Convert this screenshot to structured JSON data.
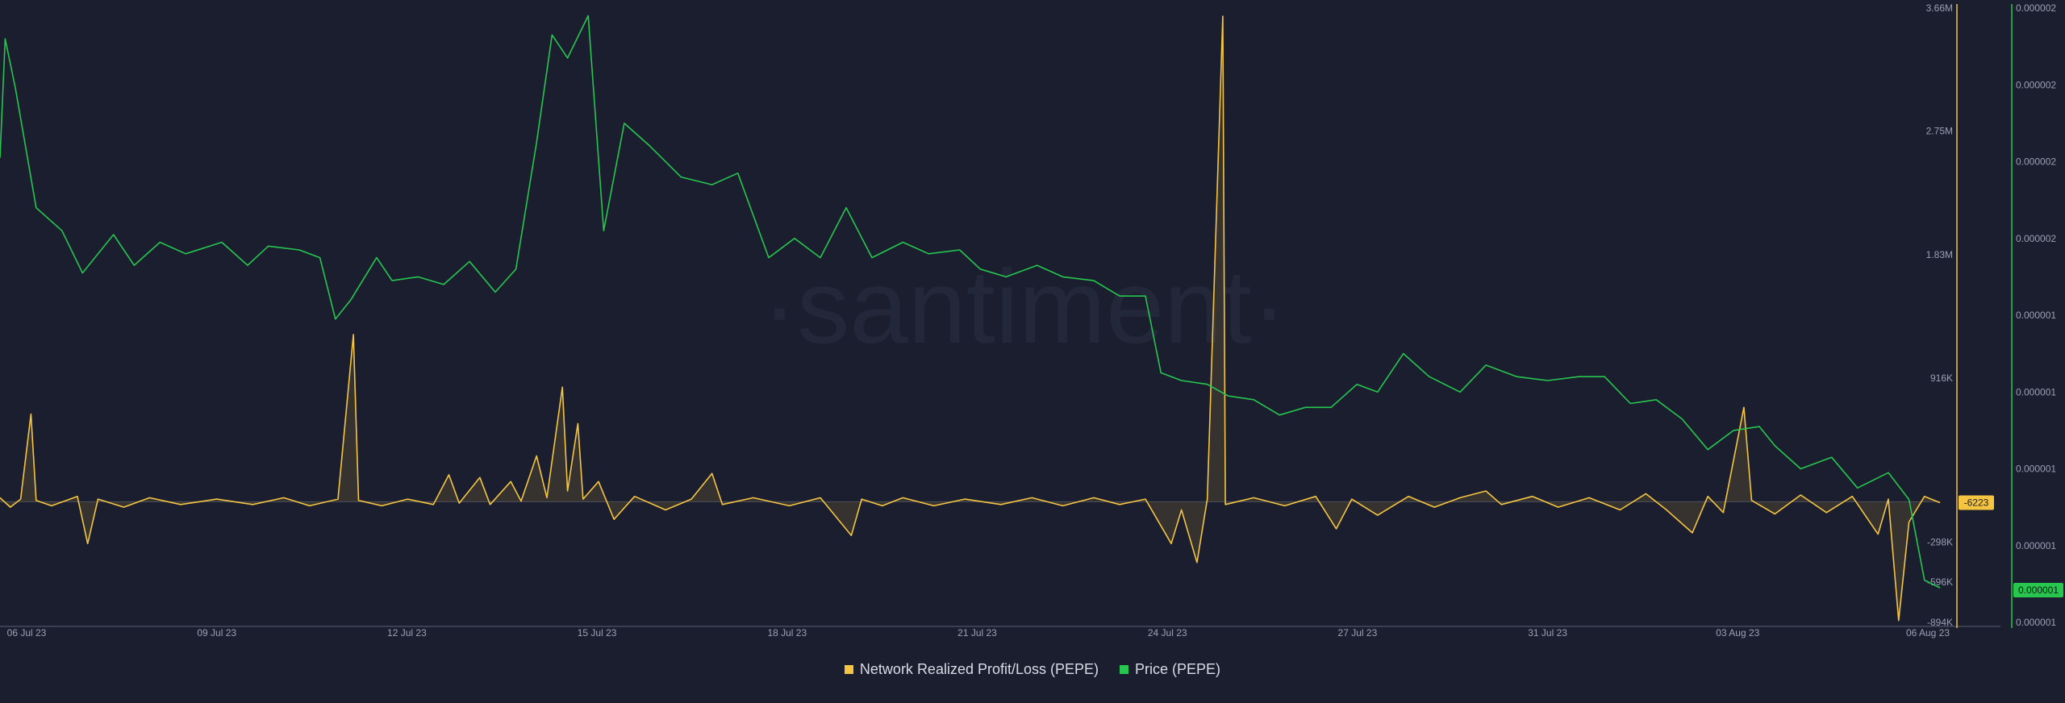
{
  "watermark": "·santiment·",
  "legend": {
    "items": [
      {
        "label": "Network Realized Profit/Loss (PEPE)",
        "color": "#f5c542"
      },
      {
        "label": "Price (PEPE)",
        "color": "#26c64f"
      }
    ]
  },
  "chart_data": {
    "type": "line",
    "x_labels": [
      "06 Jul 23",
      "09 Jul 23",
      "12 Jul 23",
      "15 Jul 23",
      "18 Jul 23",
      "21 Jul 23",
      "24 Jul 23",
      "27 Jul 23",
      "31 Jul 23",
      "03 Aug 23",
      "06 Aug 23"
    ],
    "x_domain": [
      "2023-07-05T16:00",
      "2023-08-06T00:00"
    ],
    "grid": false,
    "legend_position": "bottom-center",
    "profit_loss_axis": {
      "ticks": [
        "3.66M",
        "2.75M",
        "1.83M",
        "916K",
        "-298K",
        "-596K",
        "-894K"
      ],
      "tick_values": [
        3660000,
        2750000,
        1830000,
        916000,
        -298000,
        -596000,
        -894000
      ],
      "range": [
        -894000,
        3660000
      ],
      "current_label": "-6223"
    },
    "price_axis": {
      "ticks": [
        "0.000002",
        "0.000002",
        "0.000002",
        "0.000002",
        "0.000001",
        "0.000001",
        "0.000001",
        "0.000001",
        "0.000001"
      ],
      "range": [
        1.2e-06,
        2.8e-06
      ],
      "current_label": "0.000001"
    },
    "series": [
      {
        "name": "Network Realized Profit/Loss (PEPE)",
        "color": "#f5c542",
        "axis": "left",
        "points": [
          [
            "2023-07-05T16:00",
            30000
          ],
          [
            "2023-07-05T20:00",
            -40000
          ],
          [
            "2023-07-06T00:00",
            20000
          ],
          [
            "2023-07-06T04:00",
            650000
          ],
          [
            "2023-07-06T06:00",
            10000
          ],
          [
            "2023-07-06T12:00",
            -30000
          ],
          [
            "2023-07-06T22:00",
            40000
          ],
          [
            "2023-07-07T02:00",
            -310000
          ],
          [
            "2023-07-07T06:00",
            20000
          ],
          [
            "2023-07-07T16:00",
            -40000
          ],
          [
            "2023-07-08T02:00",
            30000
          ],
          [
            "2023-07-08T14:00",
            -20000
          ],
          [
            "2023-07-09T04:00",
            20000
          ],
          [
            "2023-07-09T18:00",
            -20000
          ],
          [
            "2023-07-10T06:00",
            30000
          ],
          [
            "2023-07-10T16:00",
            -30000
          ],
          [
            "2023-07-11T03:00",
            20000
          ],
          [
            "2023-07-11T09:00",
            1240000
          ],
          [
            "2023-07-11T11:00",
            10000
          ],
          [
            "2023-07-11T20:00",
            -30000
          ],
          [
            "2023-07-12T06:00",
            20000
          ],
          [
            "2023-07-12T16:00",
            -20000
          ],
          [
            "2023-07-12T22:00",
            200000
          ],
          [
            "2023-07-13T02:00",
            -10000
          ],
          [
            "2023-07-13T10:00",
            180000
          ],
          [
            "2023-07-13T14:00",
            -20000
          ],
          [
            "2023-07-13T22:00",
            150000
          ],
          [
            "2023-07-14T02:00",
            5000
          ],
          [
            "2023-07-14T08:00",
            340000
          ],
          [
            "2023-07-14T12:00",
            30000
          ],
          [
            "2023-07-14T18:00",
            850000
          ],
          [
            "2023-07-14T20:00",
            80000
          ],
          [
            "2023-07-15T00:00",
            580000
          ],
          [
            "2023-07-15T02:00",
            20000
          ],
          [
            "2023-07-15T08:00",
            150000
          ],
          [
            "2023-07-15T14:00",
            -130000
          ],
          [
            "2023-07-15T22:00",
            40000
          ],
          [
            "2023-07-16T10:00",
            -60000
          ],
          [
            "2023-07-16T20:00",
            20000
          ],
          [
            "2023-07-17T04:00",
            210000
          ],
          [
            "2023-07-17T08:00",
            -20000
          ],
          [
            "2023-07-17T20:00",
            30000
          ],
          [
            "2023-07-18T10:00",
            -30000
          ],
          [
            "2023-07-18T22:00",
            30000
          ],
          [
            "2023-07-19T10:00",
            -250000
          ],
          [
            "2023-07-19T14:00",
            20000
          ],
          [
            "2023-07-19T22:00",
            -30000
          ],
          [
            "2023-07-20T06:00",
            30000
          ],
          [
            "2023-07-20T18:00",
            -30000
          ],
          [
            "2023-07-21T06:00",
            20000
          ],
          [
            "2023-07-21T20:00",
            -20000
          ],
          [
            "2023-07-22T08:00",
            30000
          ],
          [
            "2023-07-22T20:00",
            -30000
          ],
          [
            "2023-07-23T08:00",
            30000
          ],
          [
            "2023-07-23T18:00",
            -20000
          ],
          [
            "2023-07-24T04:00",
            20000
          ],
          [
            "2023-07-24T14:00",
            -310000
          ],
          [
            "2023-07-24T18:00",
            -60000
          ],
          [
            "2023-07-25T00:00",
            -450000
          ],
          [
            "2023-07-25T04:00",
            20000
          ],
          [
            "2023-07-25T10:00",
            3600000
          ],
          [
            "2023-07-25T11:00",
            -20000
          ],
          [
            "2023-07-25T22:00",
            30000
          ],
          [
            "2023-07-26T10:00",
            -30000
          ],
          [
            "2023-07-26T22:00",
            40000
          ],
          [
            "2023-07-27T06:00",
            -200000
          ],
          [
            "2023-07-27T12:00",
            20000
          ],
          [
            "2023-07-27T22:00",
            -100000
          ],
          [
            "2023-07-28T10:00",
            40000
          ],
          [
            "2023-07-28T20:00",
            -40000
          ],
          [
            "2023-07-29T06:00",
            30000
          ],
          [
            "2023-07-29T16:00",
            80000
          ],
          [
            "2023-07-29T22:00",
            -20000
          ],
          [
            "2023-07-30T10:00",
            40000
          ],
          [
            "2023-07-30T20:00",
            -40000
          ],
          [
            "2023-07-31T08:00",
            30000
          ],
          [
            "2023-07-31T20:00",
            -60000
          ],
          [
            "2023-08-01T06:00",
            60000
          ],
          [
            "2023-08-01T14:00",
            -60000
          ],
          [
            "2023-08-02T00:00",
            -230000
          ],
          [
            "2023-08-02T06:00",
            40000
          ],
          [
            "2023-08-02T12:00",
            -80000
          ],
          [
            "2023-08-02T20:00",
            700000
          ],
          [
            "2023-08-02T23:00",
            10000
          ],
          [
            "2023-08-03T08:00",
            -90000
          ],
          [
            "2023-08-03T18:00",
            50000
          ],
          [
            "2023-08-04T04:00",
            -80000
          ],
          [
            "2023-08-04T14:00",
            40000
          ],
          [
            "2023-08-05T00:00",
            -240000
          ],
          [
            "2023-08-05T04:00",
            20000
          ],
          [
            "2023-08-05T08:00",
            -880000
          ],
          [
            "2023-08-05T12:00",
            -150000
          ],
          [
            "2023-08-05T18:00",
            40000
          ],
          [
            "2023-08-06T00:00",
            -6223
          ]
        ]
      },
      {
        "name": "Price (PEPE)",
        "color": "#26c64f",
        "axis": "right",
        "points": [
          [
            "2023-07-05T16:00",
            2.41e-06
          ],
          [
            "2023-07-05T18:00",
            2.72e-06
          ],
          [
            "2023-07-05T22:00",
            2.59e-06
          ],
          [
            "2023-07-06T06:00",
            2.28e-06
          ],
          [
            "2023-07-06T16:00",
            2.22e-06
          ],
          [
            "2023-07-07T00:00",
            2.11e-06
          ],
          [
            "2023-07-07T12:00",
            2.21e-06
          ],
          [
            "2023-07-07T20:00",
            2.13e-06
          ],
          [
            "2023-07-08T06:00",
            2.19e-06
          ],
          [
            "2023-07-08T16:00",
            2.16e-06
          ],
          [
            "2023-07-09T06:00",
            2.19e-06
          ],
          [
            "2023-07-09T16:00",
            2.13e-06
          ],
          [
            "2023-07-10T00:00",
            2.18e-06
          ],
          [
            "2023-07-10T12:00",
            2.17e-06
          ],
          [
            "2023-07-10T20:00",
            2.15e-06
          ],
          [
            "2023-07-11T02:00",
            1.99e-06
          ],
          [
            "2023-07-11T08:00",
            2.04e-06
          ],
          [
            "2023-07-11T18:00",
            2.15e-06
          ],
          [
            "2023-07-12T00:00",
            2.09e-06
          ],
          [
            "2023-07-12T10:00",
            2.1e-06
          ],
          [
            "2023-07-12T20:00",
            2.08e-06
          ],
          [
            "2023-07-13T06:00",
            2.14e-06
          ],
          [
            "2023-07-13T16:00",
            2.06e-06
          ],
          [
            "2023-07-14T00:00",
            2.12e-06
          ],
          [
            "2023-07-14T08:00",
            2.45e-06
          ],
          [
            "2023-07-14T14:00",
            2.73e-06
          ],
          [
            "2023-07-14T20:00",
            2.67e-06
          ],
          [
            "2023-07-15T04:00",
            2.78e-06
          ],
          [
            "2023-07-15T10:00",
            2.22e-06
          ],
          [
            "2023-07-15T18:00",
            2.5e-06
          ],
          [
            "2023-07-16T04:00",
            2.44e-06
          ],
          [
            "2023-07-16T16:00",
            2.36e-06
          ],
          [
            "2023-07-17T04:00",
            2.34e-06
          ],
          [
            "2023-07-17T14:00",
            2.37e-06
          ],
          [
            "2023-07-18T02:00",
            2.15e-06
          ],
          [
            "2023-07-18T12:00",
            2.2e-06
          ],
          [
            "2023-07-18T22:00",
            2.15e-06
          ],
          [
            "2023-07-19T08:00",
            2.28e-06
          ],
          [
            "2023-07-19T18:00",
            2.15e-06
          ],
          [
            "2023-07-20T06:00",
            2.19e-06
          ],
          [
            "2023-07-20T16:00",
            2.16e-06
          ],
          [
            "2023-07-21T04:00",
            2.17e-06
          ],
          [
            "2023-07-21T12:00",
            2.12e-06
          ],
          [
            "2023-07-21T22:00",
            2.1e-06
          ],
          [
            "2023-07-22T10:00",
            2.13e-06
          ],
          [
            "2023-07-22T20:00",
            2.1e-06
          ],
          [
            "2023-07-23T08:00",
            2.09e-06
          ],
          [
            "2023-07-23T18:00",
            2.05e-06
          ],
          [
            "2023-07-24T04:00",
            2.05e-06
          ],
          [
            "2023-07-24T10:00",
            1.85e-06
          ],
          [
            "2023-07-24T18:00",
            1.83e-06
          ],
          [
            "2023-07-25T04:00",
            1.82e-06
          ],
          [
            "2023-07-25T12:00",
            1.79e-06
          ],
          [
            "2023-07-25T22:00",
            1.78e-06
          ],
          [
            "2023-07-26T08:00",
            1.74e-06
          ],
          [
            "2023-07-26T18:00",
            1.76e-06
          ],
          [
            "2023-07-27T04:00",
            1.76e-06
          ],
          [
            "2023-07-27T14:00",
            1.82e-06
          ],
          [
            "2023-07-27T22:00",
            1.8e-06
          ],
          [
            "2023-07-28T08:00",
            1.9e-06
          ],
          [
            "2023-07-28T18:00",
            1.84e-06
          ],
          [
            "2023-07-29T06:00",
            1.8e-06
          ],
          [
            "2023-07-29T16:00",
            1.87e-06
          ],
          [
            "2023-07-30T04:00",
            1.84e-06
          ],
          [
            "2023-07-30T16:00",
            1.83e-06
          ],
          [
            "2023-07-31T04:00",
            1.84e-06
          ],
          [
            "2023-07-31T14:00",
            1.84e-06
          ],
          [
            "2023-08-01T00:00",
            1.77e-06
          ],
          [
            "2023-08-01T10:00",
            1.78e-06
          ],
          [
            "2023-08-01T20:00",
            1.73e-06
          ],
          [
            "2023-08-02T06:00",
            1.65e-06
          ],
          [
            "2023-08-02T16:00",
            1.7e-06
          ],
          [
            "2023-08-03T02:00",
            1.71e-06
          ],
          [
            "2023-08-03T08:00",
            1.66e-06
          ],
          [
            "2023-08-03T18:00",
            1.6e-06
          ],
          [
            "2023-08-04T06:00",
            1.63e-06
          ],
          [
            "2023-08-04T16:00",
            1.55e-06
          ],
          [
            "2023-08-05T04:00",
            1.59e-06
          ],
          [
            "2023-08-05T12:00",
            1.52e-06
          ],
          [
            "2023-08-05T18:00",
            1.31e-06
          ],
          [
            "2023-08-06T00:00",
            1.29e-06
          ]
        ]
      }
    ]
  }
}
